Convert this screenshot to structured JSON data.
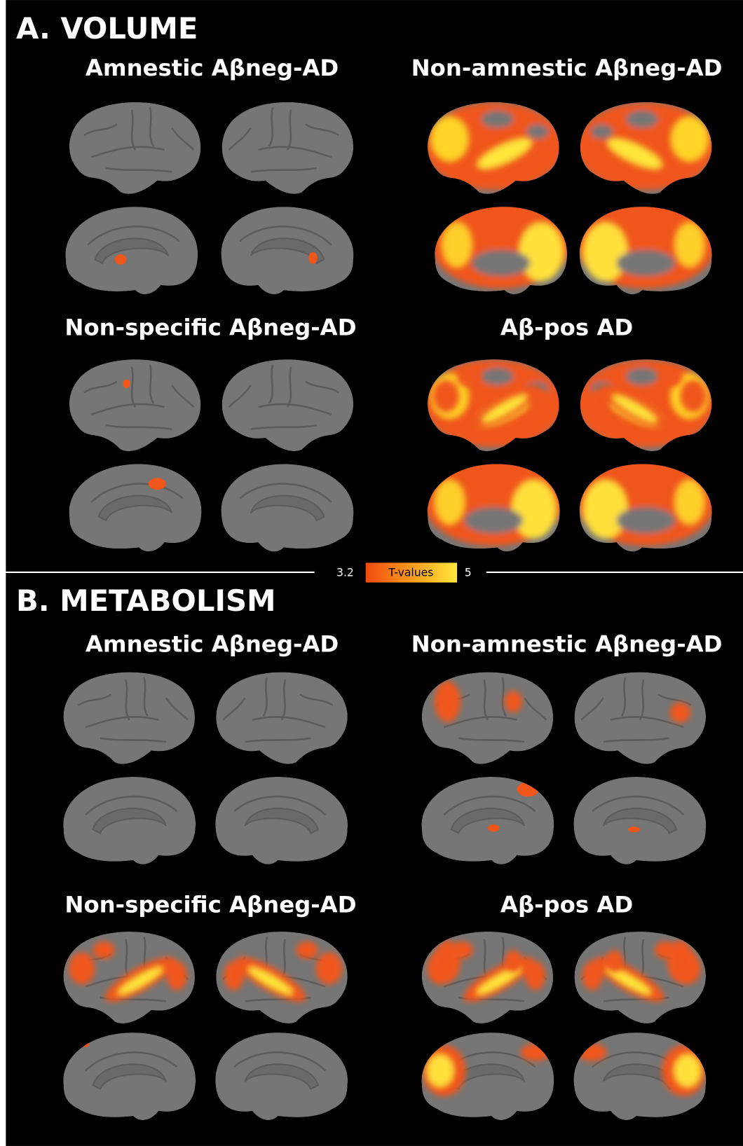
{
  "sections": [
    {
      "title": "A. VOLUME",
      "panels": [
        "Amnestic Aβneg-AD",
        "Non-amnestic Aβneg-AD",
        "Non-specific Aβneg-AD",
        "Aβ-pos AD"
      ]
    },
    {
      "title": "B. METABOLISM",
      "panels": [
        "Amnestic Aβneg-AD",
        "Non-amnestic Aβneg-AD",
        "Non-specific Aβneg-AD",
        "Aβ-pos AD"
      ]
    }
  ],
  "colorbar": {
    "min": 3.2,
    "label": "T-values",
    "max": 5
  }
}
